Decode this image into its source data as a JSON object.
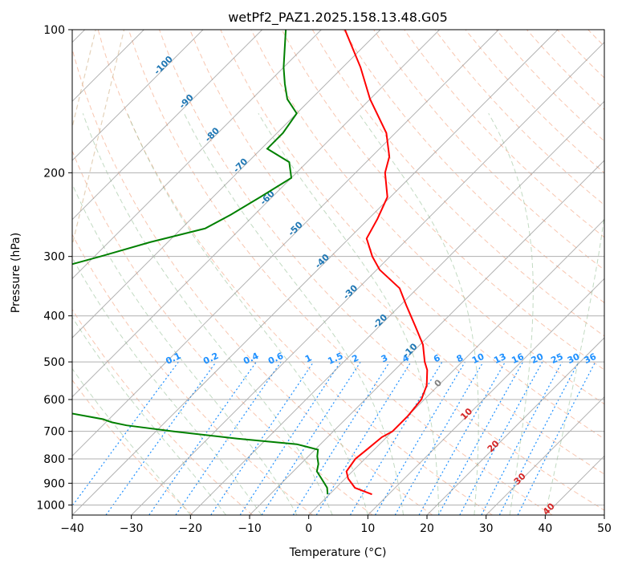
{
  "chart_data": {
    "type": "line",
    "title": "wetPf2_PAZ1.2025.158.13.48.G05",
    "xlabel": "Temperature (°C)",
    "ylabel": "Pressure (hPa)",
    "xlim": [
      -40,
      50
    ],
    "ylim": [
      1050,
      100
    ],
    "y_scale": "log",
    "skew": "skew-T log-p",
    "grid": true,
    "x_ticks": [
      -40,
      -30,
      -20,
      -10,
      0,
      10,
      20,
      30,
      40,
      50
    ],
    "x_tick_labels": [
      "−40",
      "−30",
      "−20",
      "−10",
      "0",
      "10",
      "20",
      "30",
      "40",
      "50"
    ],
    "y_ticks": [
      100,
      200,
      300,
      400,
      500,
      600,
      700,
      800,
      900,
      1000
    ],
    "y_tick_labels": [
      "100",
      "200",
      "300",
      "400",
      "500",
      "600",
      "700",
      "800",
      "900",
      "1000"
    ],
    "series": [
      {
        "color": "#ff0000",
        "points": [
          [
            950,
            7.2
          ],
          [
            920,
            3.2
          ],
          [
            880,
            0.5
          ],
          [
            850,
            -1
          ],
          [
            800,
            -1.6
          ],
          [
            760,
            -1.2
          ],
          [
            720,
            -0.8
          ],
          [
            700,
            0
          ],
          [
            650,
            0
          ],
          [
            600,
            -0.5
          ],
          [
            560,
            -2
          ],
          [
            520,
            -4.5
          ],
          [
            500,
            -6.3
          ],
          [
            460,
            -9.5
          ],
          [
            420,
            -14
          ],
          [
            380,
            -19
          ],
          [
            350,
            -23
          ],
          [
            320,
            -29.5
          ],
          [
            300,
            -33
          ],
          [
            275,
            -37
          ],
          [
            250,
            -38.5
          ],
          [
            225,
            -40.5
          ],
          [
            200,
            -45
          ],
          [
            185,
            -47
          ],
          [
            165,
            -51.5
          ],
          [
            140,
            -60
          ],
          [
            120,
            -67
          ],
          [
            100,
            -76
          ]
        ]
      },
      {
        "color": "#008000",
        "points": [
          [
            950,
            -0.3
          ],
          [
            920,
            -1.5
          ],
          [
            880,
            -4
          ],
          [
            850,
            -6
          ],
          [
            820,
            -7
          ],
          [
            790,
            -8.5
          ],
          [
            765,
            -9.5
          ],
          [
            745,
            -14
          ],
          [
            725,
            -25
          ],
          [
            700,
            -37
          ],
          [
            680,
            -46
          ],
          [
            670,
            -49
          ],
          [
            660,
            -51
          ],
          [
            640,
            -58
          ],
          [
            620,
            -71
          ],
          [
            430,
            -80
          ],
          [
            410,
            -80
          ],
          [
            390,
            -80
          ],
          [
            360,
            -80
          ],
          [
            340,
            -84
          ],
          [
            320,
            -85
          ],
          [
            300,
            -79
          ],
          [
            280,
            -73
          ],
          [
            262,
            -66
          ],
          [
            245,
            -64
          ],
          [
            225,
            -62
          ],
          [
            205,
            -60
          ],
          [
            190,
            -63
          ],
          [
            178,
            -69
          ],
          [
            165,
            -69
          ],
          [
            150,
            -70
          ],
          [
            140,
            -74
          ],
          [
            130,
            -77
          ],
          [
            120,
            -80
          ],
          [
            100,
            -86
          ]
        ]
      }
    ],
    "background_lines": {
      "isotherm_color": "#808080",
      "dry_adiabat_color": "#f08050",
      "moist_adiabat_color": "#8fbc8f",
      "mixing_ratio_color": "#1e90ff",
      "lcl_arc_color": "#d2b48c"
    },
    "annotations": {
      "isotherm_labels": [
        {
          "text": "-100",
          "color": "#1f77b4"
        },
        {
          "text": "-90",
          "color": "#1f77b4"
        },
        {
          "text": "-80",
          "color": "#1f77b4"
        },
        {
          "text": "-70",
          "color": "#1f77b4"
        },
        {
          "text": "-60",
          "color": "#1f77b4"
        },
        {
          "text": "-50",
          "color": "#1f77b4"
        },
        {
          "text": "-40",
          "color": "#1f77b4"
        },
        {
          "text": "-30",
          "color": "#1f77b4"
        },
        {
          "text": "-20",
          "color": "#1f77b4"
        },
        {
          "text": "-10",
          "color": "#1f77b4"
        },
        {
          "text": "0",
          "color": "#808080"
        },
        {
          "text": "10",
          "color": "#d62728"
        },
        {
          "text": "20",
          "color": "#d62728"
        },
        {
          "text": "30",
          "color": "#d62728"
        },
        {
          "text": "40",
          "color": "#d62728"
        }
      ],
      "mixing_ratio_labels": [
        "0.1",
        "0.2",
        "0.4",
        "0.6",
        "1",
        "1.5",
        "2",
        "3",
        "4",
        "6",
        "8",
        "10",
        "13",
        "16",
        "20",
        "25",
        "30",
        "36"
      ]
    }
  }
}
